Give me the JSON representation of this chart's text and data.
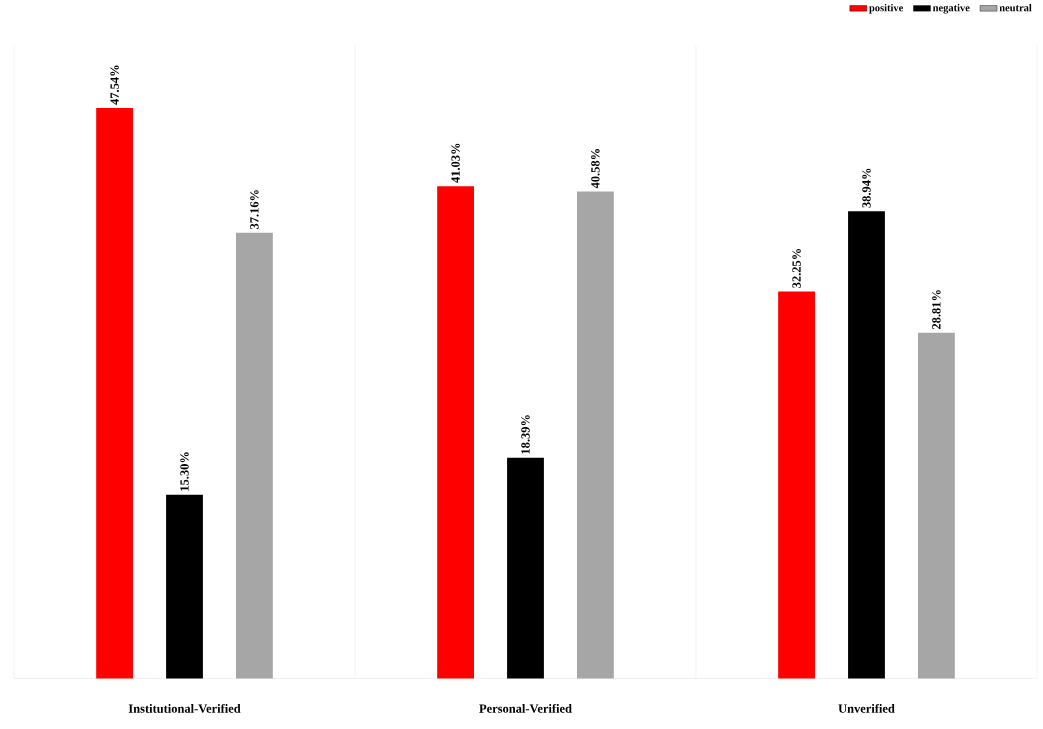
{
  "chart_data": {
    "type": "bar",
    "categories": [
      "Institutional-Verified",
      "Personal-Verified",
      "Unverified"
    ],
    "series": [
      {
        "name": "positive",
        "color": "#ff0000",
        "values": [
          47.54,
          41.03,
          32.25
        ],
        "value_labels": [
          "47.54%",
          "41.03%",
          "32.25%"
        ]
      },
      {
        "name": "negative",
        "color": "#000000",
        "values": [
          15.3,
          18.39,
          38.94
        ],
        "value_labels": [
          "15.30%",
          "18.39%",
          "38.94%"
        ]
      },
      {
        "name": "neutral",
        "color": "#a6a6a6",
        "values": [
          37.16,
          40.58,
          28.81
        ],
        "value_labels": [
          "37.16%",
          "40.58%",
          "28.81%"
        ]
      }
    ],
    "grid": "x",
    "legend": "top right"
  }
}
